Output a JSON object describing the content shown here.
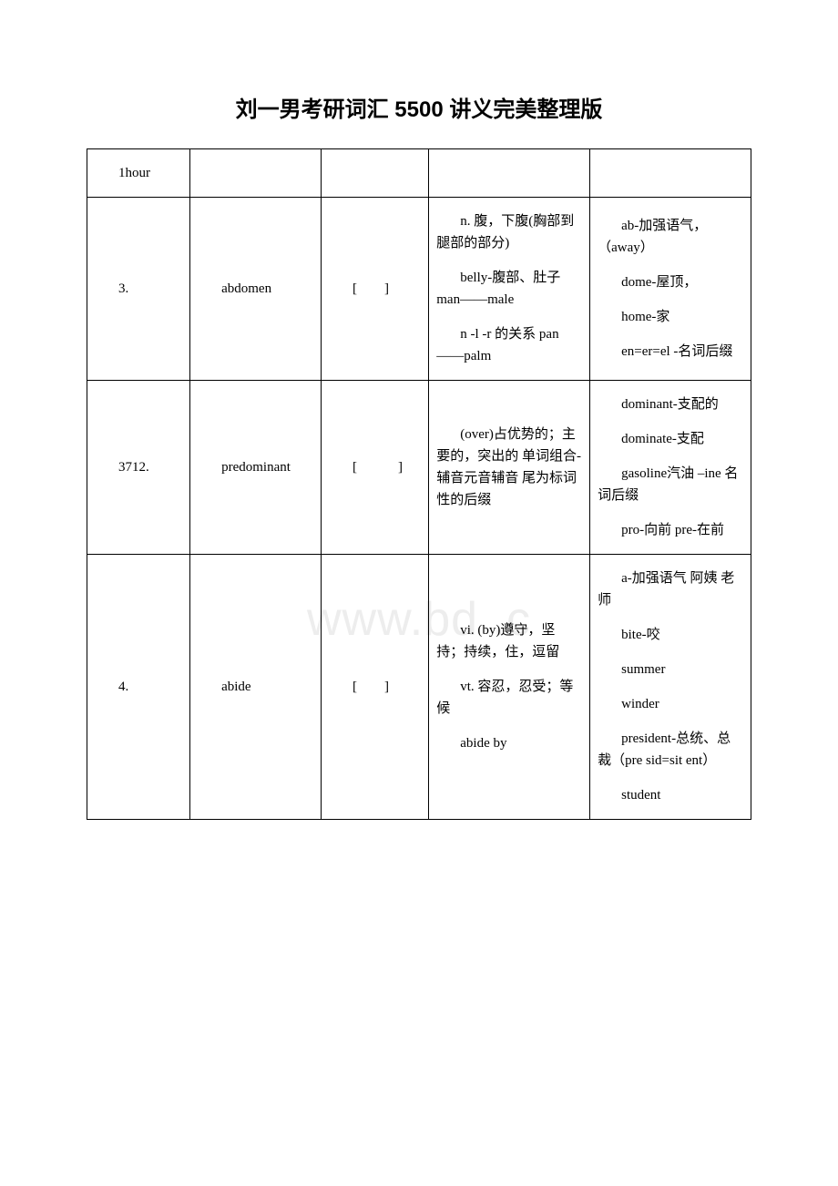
{
  "title": "刘一男考研词汇 5500 讲义完美整理版",
  "watermark": "www.bd        .c",
  "rows": [
    {
      "c1": "1hour",
      "c2": "",
      "c3": "",
      "c4": [],
      "c5": []
    },
    {
      "c1": "3.",
      "c2": "abdomen",
      "c3": "[　　]",
      "c4": [
        "n. 腹，下腹(胸部到腿部的部分)",
        "belly-腹部、肚子 man——male",
        "n -l -r 的关系 pan——palm"
      ],
      "c5": [
        "ab-加强语气，（away）",
        "dome-屋顶，",
        "home-家",
        "en=er=el -名词后缀"
      ]
    },
    {
      "c1": "3712.",
      "c2": "predominant",
      "c3": "[　　　]",
      "c4": [
        "(over)占优势的；主要的，突出的 单词组合-辅音元音辅音 尾为标词性的后缀"
      ],
      "c5": [
        "dominant-支配的",
        "dominate-支配",
        "gasoline汽油 –ine 名词后缀",
        "pro-向前 pre-在前"
      ]
    },
    {
      "c1": "4.",
      "c2": "abide",
      "c3": "[　　]",
      "c4": [
        "vi. (by)遵守，坚持；持续，住，逗留",
        "vt. 容忍，忍受；等候",
        "abide by"
      ],
      "c5": [
        "a-加强语气 阿姨 老师",
        "bite-咬",
        "summer",
        "winder",
        "president-总统、总裁（pre sid=sit ent）",
        "student"
      ]
    }
  ]
}
